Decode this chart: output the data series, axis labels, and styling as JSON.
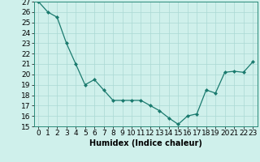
{
  "title": "",
  "xlabel": "Humidex (Indice chaleur)",
  "x": [
    0,
    1,
    2,
    3,
    4,
    5,
    6,
    7,
    8,
    9,
    10,
    11,
    12,
    13,
    14,
    15,
    16,
    17,
    18,
    19,
    20,
    21,
    22,
    23
  ],
  "y": [
    27,
    26,
    25.5,
    23,
    21,
    19,
    19.5,
    18.5,
    17.5,
    17.5,
    17.5,
    17.5,
    17,
    16.5,
    15.8,
    15.2,
    16,
    16.2,
    18.5,
    18.2,
    20.2,
    20.3,
    20.2,
    21.2
  ],
  "line_color": "#1a7a6e",
  "marker": "D",
  "marker_size": 2,
  "background_color": "#cff0eb",
  "grid_color": "#aad8d3",
  "ylim": [
    15,
    27
  ],
  "yticks": [
    15,
    16,
    17,
    18,
    19,
    20,
    21,
    22,
    23,
    24,
    25,
    26,
    27
  ],
  "xlim": [
    -0.5,
    23.5
  ],
  "xticks": [
    0,
    1,
    2,
    3,
    4,
    5,
    6,
    7,
    8,
    9,
    10,
    11,
    12,
    13,
    14,
    15,
    16,
    17,
    18,
    19,
    20,
    21,
    22,
    23
  ],
  "label_fontsize": 7,
  "tick_fontsize": 6.5,
  "line_width": 0.9
}
